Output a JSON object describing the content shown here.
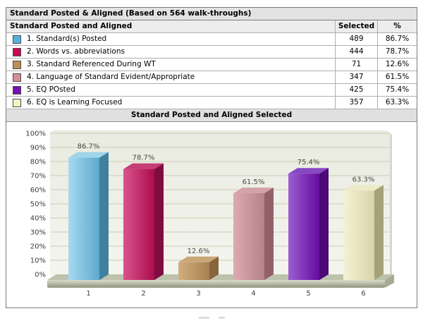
{
  "report": {
    "title": "Standard Posted & Aligned (Based on 564 walk-throughs)",
    "table": {
      "header": {
        "label": "Standard Posted and Aligned",
        "selected": "Selected",
        "percent": "%"
      },
      "rows": [
        {
          "swatch": "#54b2e2",
          "label": "1. Standard(s) Posted",
          "selected": "489",
          "percent": "86.7%"
        },
        {
          "swatch": "#cb0a52",
          "label": "2. Words vs. abbreviations",
          "selected": "444",
          "percent": "78.7%"
        },
        {
          "swatch": "#bb9055",
          "label": "3. Standard Referenced During WT",
          "selected": "71",
          "percent": "12.6%"
        },
        {
          "swatch": "#d49094",
          "label": "4. Language of Standard Evident/Appropriate",
          "selected": "347",
          "percent": "61.5%"
        },
        {
          "swatch": "#7a0db4",
          "label": "5. EQ POsted",
          "selected": "425",
          "percent": "75.4%"
        },
        {
          "swatch": "#f4f1c4",
          "label": "6. EQ is Learning Focused",
          "selected": "357",
          "percent": "63.3%"
        }
      ]
    },
    "chart_title": "Standard Posted and Aligned Selected"
  },
  "chart_data": {
    "type": "bar",
    "style": "3d-column",
    "title": "Standard Posted and Aligned Selected",
    "categories": [
      "1",
      "2",
      "3",
      "4",
      "5",
      "6"
    ],
    "values": [
      86.7,
      78.7,
      12.6,
      61.5,
      75.4,
      63.3
    ],
    "value_labels": [
      "86.7%",
      "78.7%",
      "12.6%",
      "61.5%",
      "75.4%",
      "63.3%"
    ],
    "series_names": [
      "1. Standard(s) Posted",
      "2. Words vs. abbreviations",
      "3. Standard Referenced During WT",
      "4. Language of Standard Evident/Appropriate",
      "5. EQ POsted",
      "6. EQ is Learning Focused"
    ],
    "xlabel": "",
    "ylabel": "",
    "ylim": [
      0,
      100
    ],
    "ytick_step": 10,
    "ytick_labels": [
      "0%",
      "10%",
      "20%",
      "30%",
      "40%",
      "50%",
      "60%",
      "70%",
      "80%",
      "90%",
      "100%"
    ],
    "grid": true,
    "legend_position": "none",
    "plot_bg_light": "#f4f5ef",
    "plot_bg_dark": "#e9ebe0",
    "plot_shadow": "#d7d7d2",
    "grid_color": "#c9cdb4",
    "axis_label_color": "#3d3d38",
    "value_label_color": "#4a4a40",
    "bar_colors": [
      {
        "front_light": "#a5daf1",
        "front_dark": "#5ea9cd",
        "top": "#9fd4ea",
        "side": "#40809e"
      },
      {
        "front_light": "#d9538e",
        "front_dark": "#ab0d4c",
        "top": "#c63d76",
        "side": "#7f0c41"
      },
      {
        "front_light": "#d2ae80",
        "front_dark": "#a8804e",
        "top": "#c9a678",
        "side": "#86643c"
      },
      {
        "front_light": "#dcabb0",
        "front_dark": "#b5828a",
        "top": "#d4a2a8",
        "side": "#916169"
      },
      {
        "front_light": "#9a5fd2",
        "front_dark": "#660c9f",
        "top": "#8848c4",
        "side": "#4b0a77"
      },
      {
        "front_light": "#f4f2d4",
        "front_dark": "#d7d3aa",
        "top": "#edeac8",
        "side": "#a5a27a"
      }
    ],
    "floor_colors": {
      "top": "#bcc2ac",
      "front_light": "#d9dccd",
      "front_dark": "#8f947b",
      "side": "#a5ab94"
    }
  }
}
